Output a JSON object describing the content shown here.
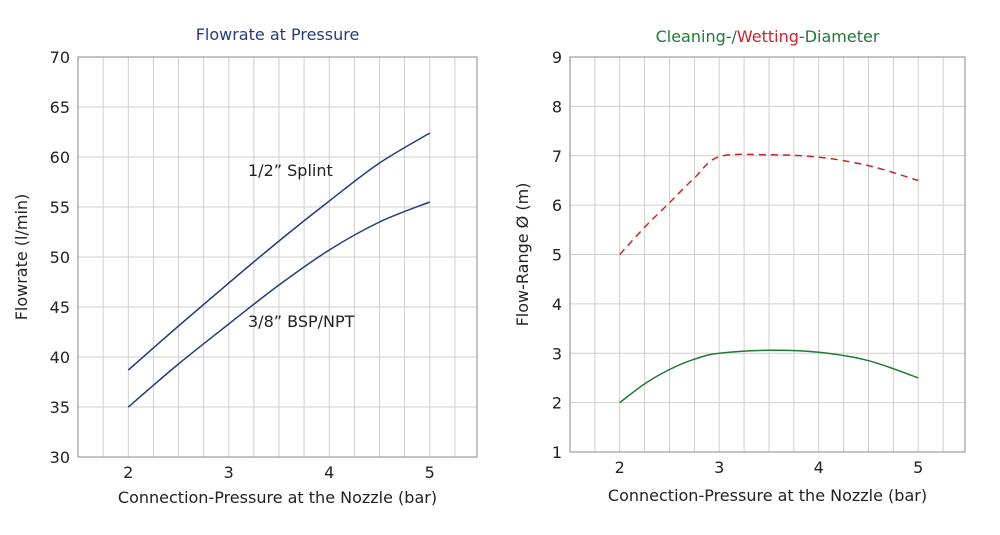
{
  "colors": {
    "navy": "#253a7f",
    "red": "#cc2229",
    "green": "#1f7a36",
    "grid": "#cfcfcf",
    "frame": "#8a8a8a"
  },
  "chart_data": [
    {
      "type": "line",
      "title": "Flowrate at Pressure",
      "xlabel": "Connection-Pressure at the Nozzle (bar)",
      "ylabel": "Flowrate (l/min)",
      "xlim": [
        1.5,
        5.47
      ],
      "ylim": [
        30,
        70
      ],
      "xticks": [
        "2",
        "3",
        "4",
        "5"
      ],
      "yticks": [
        "30",
        "35",
        "40",
        "45",
        "50",
        "55",
        "60",
        "65",
        "70"
      ],
      "grid": true,
      "annotations": [
        "1/2” Splint",
        "3/8” BSP/NPT"
      ],
      "series": [
        {
          "name": "1/2” Splint",
          "style": "solid",
          "x": [
            2,
            2.5,
            3,
            3.5,
            4,
            4.5,
            5
          ],
          "y": [
            38.7,
            43.1,
            47.4,
            51.6,
            55.6,
            59.4,
            62.4
          ]
        },
        {
          "name": "3/8” BSP/NPT",
          "style": "solid",
          "x": [
            2,
            2.5,
            3,
            3.5,
            4,
            4.5,
            5
          ],
          "y": [
            35.0,
            39.3,
            43.3,
            47.2,
            50.7,
            53.5,
            55.5
          ]
        }
      ]
    },
    {
      "type": "line",
      "title": "Cleaning-/Wetting-Diameter",
      "title_parts": [
        {
          "text": "Cleaning-/",
          "color": "#1f7a36"
        },
        {
          "text": "Wetting",
          "color": "#cc2229"
        },
        {
          "text": "-Diameter",
          "color": "#1f7a36"
        }
      ],
      "xlabel": "Connection-Pressure at the Nozzle (bar)",
      "ylabel": "Flow-Range Ø (m)",
      "xlim": [
        1.5,
        5.47
      ],
      "ylim": [
        1,
        9
      ],
      "xticks": [
        "2",
        "3",
        "4",
        "5"
      ],
      "yticks": [
        "1",
        "2",
        "3",
        "4",
        "5",
        "6",
        "7",
        "8",
        "9"
      ],
      "grid": true,
      "series": [
        {
          "name": "Wetting",
          "style": "dashed",
          "x": [
            2,
            2.25,
            2.5,
            2.75,
            3,
            3.5,
            4,
            4.5,
            5
          ],
          "y": [
            5.0,
            5.55,
            6.05,
            6.55,
            6.98,
            7.02,
            6.97,
            6.8,
            6.5
          ]
        },
        {
          "name": "Cleaning",
          "style": "solid",
          "x": [
            2,
            2.25,
            2.5,
            2.75,
            3,
            3.5,
            4,
            4.5,
            5
          ],
          "y": [
            2.0,
            2.38,
            2.67,
            2.88,
            3.0,
            3.06,
            3.02,
            2.85,
            2.5
          ]
        }
      ]
    }
  ]
}
